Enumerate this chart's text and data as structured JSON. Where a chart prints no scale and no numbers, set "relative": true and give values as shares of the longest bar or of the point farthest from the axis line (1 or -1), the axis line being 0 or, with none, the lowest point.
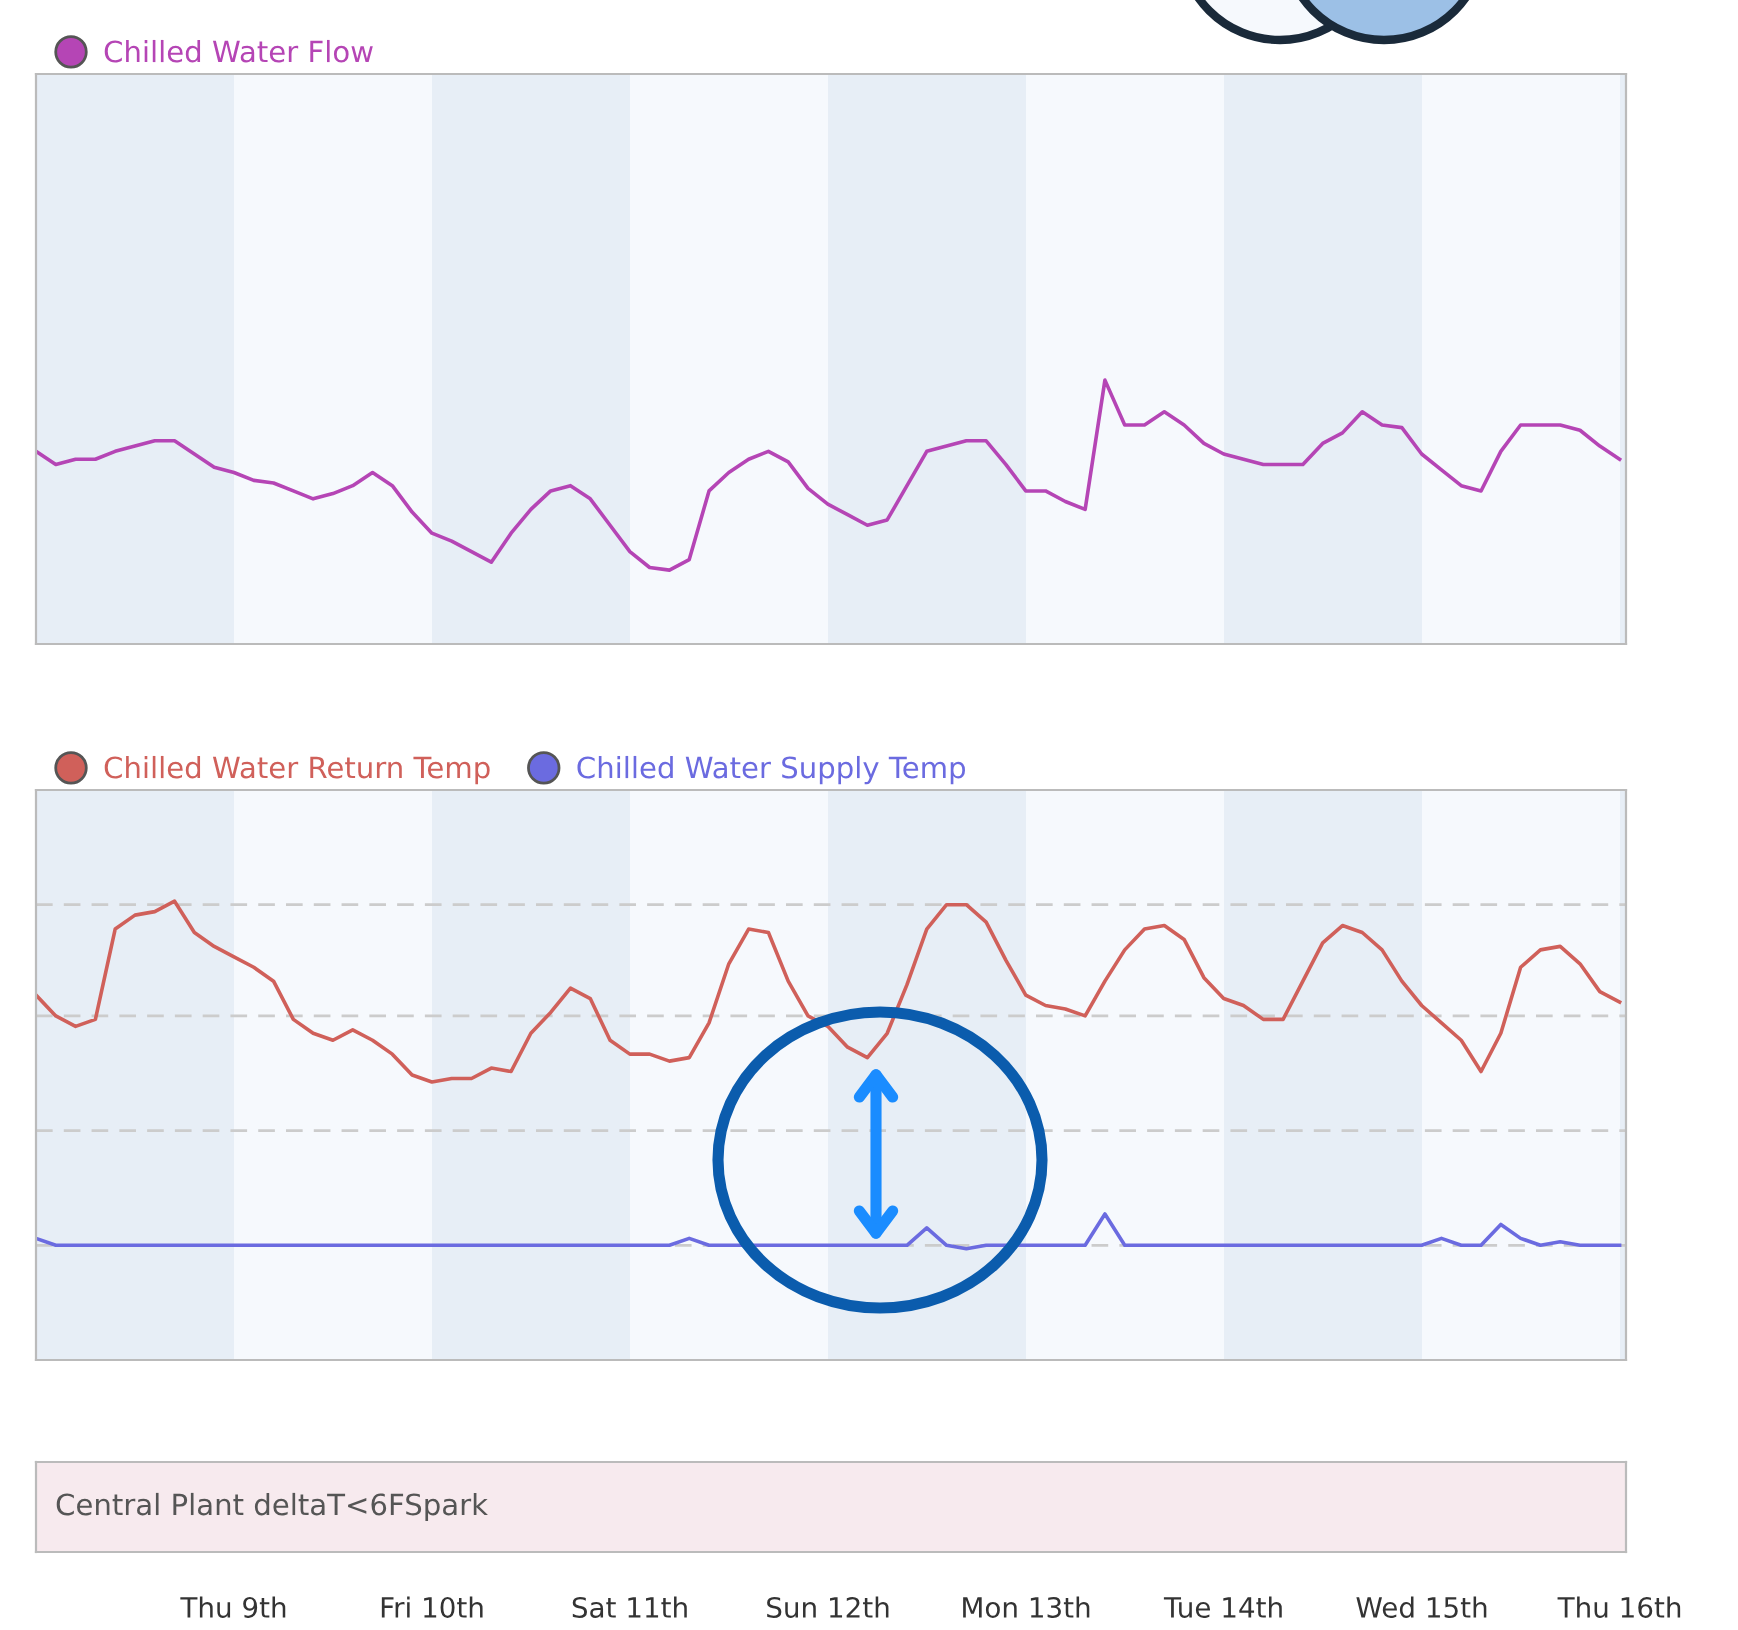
{
  "chart_data": [
    {
      "type": "line",
      "relative": true,
      "legend": "top left",
      "marker": "none",
      "line_style": "solid",
      "categories": [
        null,
        null,
        null,
        null,
        null,
        null,
        null,
        null,
        null,
        null,
        null,
        null,
        null,
        null,
        null,
        null,
        null,
        null,
        null,
        null,
        null,
        null,
        null,
        null,
        null,
        null,
        null,
        null,
        null,
        null,
        null,
        null,
        null,
        null,
        null,
        null,
        null,
        null,
        null,
        null,
        null,
        null,
        null,
        null,
        null,
        null,
        null,
        null,
        null,
        null,
        null,
        null,
        null,
        null,
        null,
        null,
        null,
        null,
        null,
        null,
        null,
        null,
        null,
        null,
        null,
        null,
        null,
        null,
        null,
        null,
        null,
        null,
        null,
        null,
        null,
        null,
        null,
        null,
        null,
        null,
        null
      ],
      "series": [
        {
          "name": "Chilled Water Flow",
          "color": "#b545b5",
          "values": [
            0.73,
            0.68,
            0.7,
            0.7,
            0.73,
            0.75,
            0.77,
            0.77,
            0.72,
            0.67,
            0.65,
            0.62,
            0.61,
            0.58,
            0.55,
            0.57,
            0.6,
            0.65,
            0.6,
            0.5,
            0.42,
            0.39,
            0.35,
            0.31,
            0.42,
            0.51,
            0.58,
            0.6,
            0.55,
            0.45,
            0.35,
            0.29,
            0.28,
            0.32,
            0.58,
            0.65,
            0.7,
            0.73,
            0.69,
            0.59,
            0.53,
            0.49,
            0.45,
            0.47,
            0.6,
            0.73,
            0.75,
            0.77,
            0.77,
            0.68,
            0.58,
            0.58,
            0.54,
            0.51,
            1.0,
            0.83,
            0.83,
            0.88,
            0.83,
            0.76,
            0.72,
            0.7,
            0.68,
            0.68,
            0.68,
            0.76,
            0.8,
            0.88,
            0.83,
            0.82,
            0.72,
            0.66,
            0.6,
            0.58,
            0.73,
            0.83,
            0.83,
            0.83,
            0.81,
            0.75,
            0.7
          ]
        }
      ]
    },
    {
      "type": "line",
      "relative": true,
      "legend": "top left",
      "marker": "none",
      "line_style": "solid",
      "ref_lines": [
        {
          "axis": "y",
          "value": 0.99,
          "color": "#cccccc",
          "line_style": "dashed"
        },
        {
          "axis": "y",
          "value": 0.67,
          "color": "#cccccc",
          "line_style": "dashed"
        },
        {
          "axis": "y",
          "value": 0.34,
          "color": "#cccccc",
          "line_style": "dashed"
        },
        {
          "axis": "y",
          "value": 0.01,
          "color": "#cccccc",
          "line_style": "dashed"
        }
      ],
      "categories": [
        null,
        null,
        null,
        null,
        null,
        null,
        null,
        null,
        null,
        null,
        null,
        null,
        null,
        null,
        null,
        null,
        null,
        null,
        null,
        null,
        null,
        null,
        null,
        null,
        null,
        null,
        null,
        null,
        null,
        null,
        null,
        null,
        null,
        null,
        null,
        null,
        null,
        null,
        null,
        null,
        null,
        null,
        null,
        null,
        null,
        null,
        null,
        null,
        null,
        null,
        null,
        null,
        null,
        null,
        null,
        null,
        null,
        null,
        null,
        null,
        null,
        null,
        null,
        null,
        null,
        null,
        null,
        null,
        null,
        null,
        null,
        null,
        null,
        null,
        null,
        null,
        null,
        null,
        null,
        null,
        null
      ],
      "series": [
        {
          "name": "Chilled Water Return Temp",
          "color": "#d0605a",
          "values": [
            0.73,
            0.67,
            0.64,
            0.66,
            0.92,
            0.96,
            0.97,
            1.0,
            0.91,
            0.87,
            0.84,
            0.81,
            0.77,
            0.66,
            0.62,
            0.6,
            0.63,
            0.6,
            0.56,
            0.5,
            0.48,
            0.49,
            0.49,
            0.52,
            0.51,
            0.62,
            0.68,
            0.75,
            0.72,
            0.6,
            0.56,
            0.56,
            0.54,
            0.55,
            0.65,
            0.82,
            0.92,
            0.91,
            0.77,
            0.67,
            0.64,
            0.58,
            0.55,
            0.62,
            0.76,
            0.92,
            0.99,
            0.99,
            0.94,
            0.83,
            0.73,
            0.7,
            0.69,
            0.67,
            0.77,
            0.86,
            0.92,
            0.93,
            0.89,
            0.78,
            0.72,
            0.7,
            0.66,
            0.66,
            0.77,
            0.88,
            0.93,
            0.91,
            0.86,
            0.77,
            0.7,
            0.65,
            0.6,
            0.51,
            0.62,
            0.81,
            0.86,
            0.87,
            0.82,
            0.74,
            0.71
          ]
        },
        {
          "name": "Chilled Water Supply Temp",
          "color": "#6b6be0",
          "values": [
            0.03,
            0.01,
            0.01,
            0.01,
            0.01,
            0.01,
            0.01,
            0.01,
            0.01,
            0.01,
            0.01,
            0.01,
            0.01,
            0.01,
            0.01,
            0.01,
            0.01,
            0.01,
            0.01,
            0.01,
            0.01,
            0.01,
            0.01,
            0.01,
            0.01,
            0.01,
            0.01,
            0.01,
            0.01,
            0.01,
            0.01,
            0.01,
            0.01,
            0.03,
            0.01,
            0.01,
            0.01,
            0.01,
            0.01,
            0.01,
            0.01,
            0.01,
            0.01,
            0.01,
            0.01,
            0.06,
            0.01,
            0.0,
            0.01,
            0.01,
            0.01,
            0.01,
            0.01,
            0.01,
            0.1,
            0.01,
            0.01,
            0.01,
            0.01,
            0.01,
            0.01,
            0.01,
            0.01,
            0.01,
            0.01,
            0.01,
            0.01,
            0.01,
            0.01,
            0.01,
            0.01,
            0.03,
            0.01,
            0.01,
            0.07,
            0.03,
            0.01,
            0.02,
            0.01,
            0.01,
            0.01
          ]
        }
      ]
    },
    {
      "type": "other",
      "title": "Central Plant deltaT<6FSpark",
      "categories": [
        "Thu 9th",
        "Fri 10th",
        "Sat 11th",
        "Sun 12th",
        "Mon 13th",
        "Tue 14th",
        "Wed 15th",
        "Thu 16th"
      ]
    }
  ]
}
